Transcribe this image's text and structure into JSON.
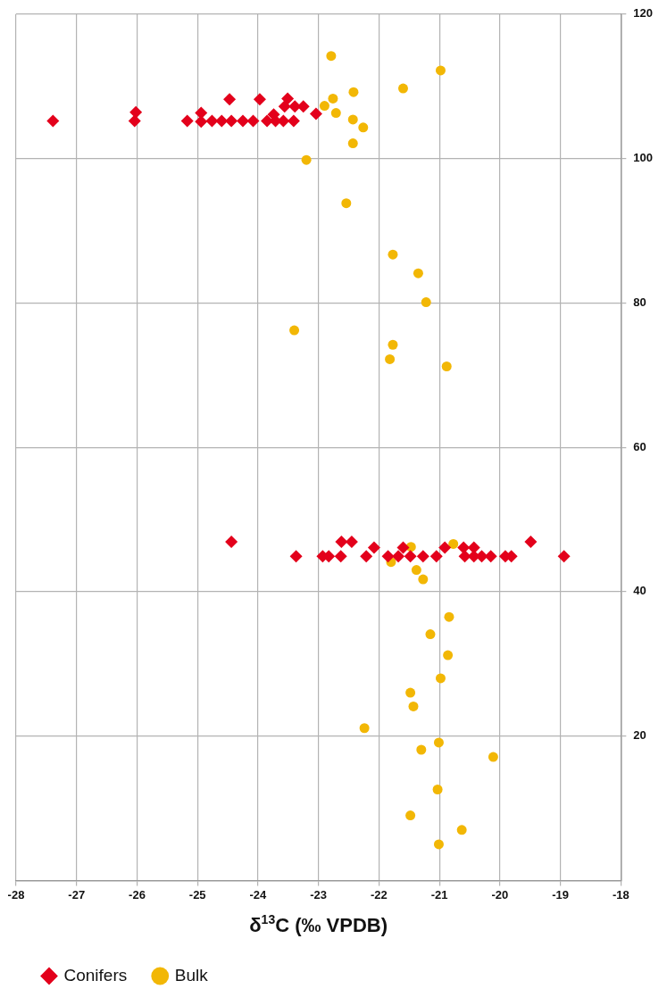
{
  "chart_data": {
    "type": "scatter",
    "xlabel": "δ$^{13}$C (‰ VPDB)",
    "xlim": [
      -28,
      -18
    ],
    "xticks": [
      -28,
      -27,
      -26,
      -25,
      -24,
      -23,
      -22,
      -21,
      -20,
      -19,
      -18
    ],
    "ylim": [
      0,
      120
    ],
    "yticks": [
      20,
      40,
      60,
      80,
      100,
      120
    ],
    "grid": true,
    "legend": "bottom left",
    "series": [
      {
        "name": "Conifers",
        "color": "#e3001b",
        "marker": "diamond",
        "x": [
          -27.39,
          -26.04,
          -26.02,
          -25.17,
          -24.94,
          -24.94,
          -24.76,
          -24.6,
          -24.47,
          -24.44,
          -24.25,
          -24.08,
          -23.97,
          -23.85,
          -23.74,
          -23.71,
          -23.58,
          -23.51,
          -23.56,
          -23.41,
          -23.39,
          -23.25,
          -23.04,
          -24.44,
          -23.37,
          -22.93,
          -22.83,
          -22.63,
          -22.62,
          -22.45,
          -22.21,
          -22.08,
          -21.85,
          -21.68,
          -21.6,
          -21.48,
          -21.27,
          -21.05,
          -20.91,
          -20.6,
          -20.43,
          -20.58,
          -20.43,
          -20.3,
          -20.15,
          -19.91,
          -19.81,
          -19.49,
          -18.94
        ],
        "values": [
          105.2,
          105.2,
          106.4,
          105.2,
          106.3,
          105.1,
          105.2,
          105.2,
          108.2,
          105.2,
          105.2,
          105.2,
          108.2,
          105.2,
          106.1,
          105.2,
          105.2,
          108.3,
          107.2,
          105.2,
          107.2,
          107.2,
          106.2,
          46.9,
          44.9,
          44.9,
          44.9,
          44.9,
          46.9,
          46.9,
          44.9,
          46.1,
          44.9,
          44.9,
          46.1,
          44.9,
          44.9,
          44.9,
          46.1,
          46.1,
          46.1,
          44.9,
          44.9,
          44.9,
          44.9,
          44.9,
          44.9,
          46.9,
          44.9
        ]
      },
      {
        "name": "Bulk",
        "color": "#f2b705",
        "marker": "circle",
        "x": [
          -22.79,
          -20.98,
          -22.42,
          -21.6,
          -22.76,
          -22.9,
          -22.71,
          -22.43,
          -22.26,
          -22.43,
          -23.2,
          -22.54,
          -21.77,
          -21.35,
          -21.22,
          -23.4,
          -21.77,
          -21.82,
          -20.88,
          -20.77,
          -21.47,
          -21.8,
          -21.38,
          -21.27,
          -20.84,
          -21.15,
          -20.86,
          -20.98,
          -21.48,
          -21.43,
          -22.24,
          -21.01,
          -21.3,
          -20.11,
          -21.03,
          -21.48,
          -20.63,
          -21.01
        ],
        "values": [
          114.2,
          112.2,
          109.2,
          109.7,
          108.3,
          107.3,
          106.3,
          105.4,
          104.3,
          102.1,
          99.8,
          93.8,
          86.7,
          84.1,
          80.1,
          76.2,
          74.2,
          72.2,
          71.2,
          46.6,
          46.2,
          44.1,
          43.0,
          41.7,
          36.5,
          34.1,
          31.2,
          28.0,
          26.0,
          24.1,
          21.1,
          19.1,
          18.1,
          17.1,
          12.6,
          9.0,
          7.0,
          5.0
        ]
      }
    ]
  }
}
